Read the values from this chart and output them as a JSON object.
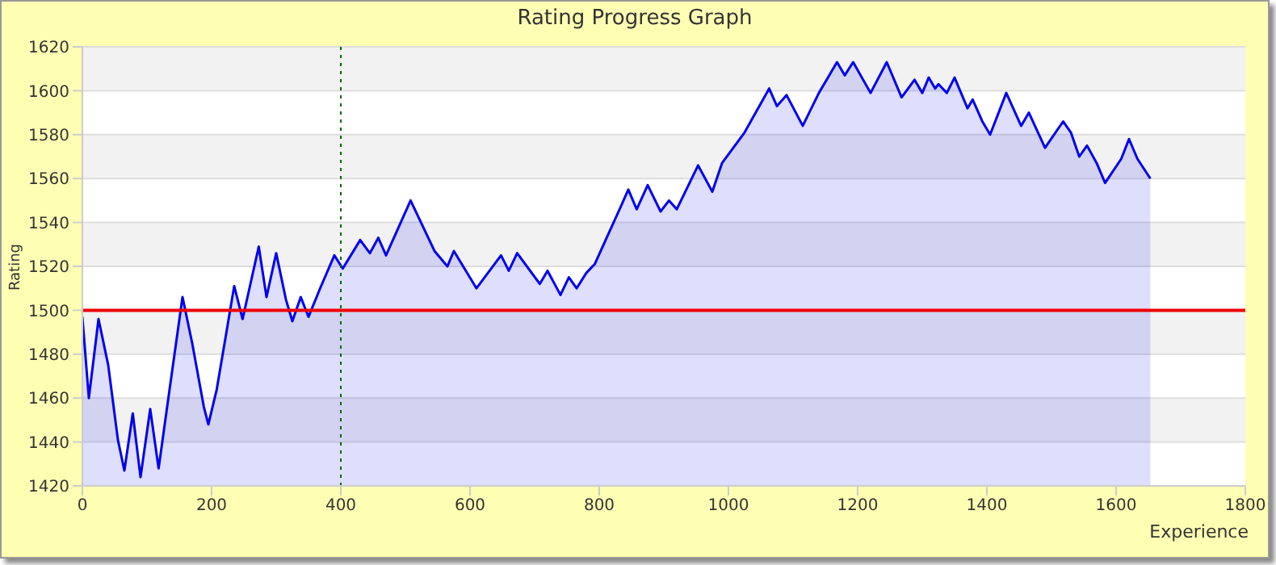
{
  "chart_data": {
    "type": "area",
    "title": "Rating Progress Graph",
    "xlabel": "Experience",
    "ylabel": "Rating",
    "x": [
      0,
      10,
      25,
      40,
      55,
      65,
      78,
      90,
      105,
      118,
      135,
      155,
      170,
      188,
      195,
      208,
      223,
      235,
      248,
      273,
      285,
      300,
      315,
      325,
      338,
      350,
      368,
      390,
      403,
      430,
      445,
      458,
      470,
      508,
      545,
      565,
      575,
      610,
      648,
      660,
      673,
      708,
      720,
      740,
      753,
      765,
      780,
      793,
      813,
      833,
      845,
      858,
      875,
      895,
      908,
      920,
      953,
      975,
      990,
      1025,
      1063,
      1075,
      1090,
      1115,
      1140,
      1168,
      1180,
      1193,
      1220,
      1245,
      1268,
      1288,
      1300,
      1310,
      1320,
      1325,
      1338,
      1350,
      1370,
      1378,
      1393,
      1405,
      1430,
      1453,
      1465,
      1490,
      1518,
      1530,
      1543,
      1555,
      1570,
      1583,
      1608,
      1620,
      1633,
      1653
    ],
    "series": [
      {
        "color": "#0000ee",
        "values": [
          1497,
          1460,
          1496,
          1475,
          1441,
          1427,
          1453,
          1424,
          1455,
          1428,
          1464,
          1506,
          1485,
          1456,
          1448,
          1464,
          1490,
          1511,
          1496,
          1529,
          1506,
          1526,
          1505,
          1495,
          1506,
          1497,
          1510,
          1525,
          1519,
          1532,
          1526,
          1533,
          1525,
          1550,
          1527,
          1520,
          1527,
          1510,
          1525,
          1518,
          1526,
          1512,
          1518,
          1507,
          1515,
          1510,
          1517,
          1521,
          1534,
          1547,
          1555,
          1546,
          1557,
          1545,
          1550,
          1546,
          1566,
          1554,
          1567,
          1581,
          1601,
          1593,
          1598,
          1584,
          1599,
          1613,
          1607,
          1613,
          1599,
          1613,
          1597,
          1605,
          1599,
          1606,
          1601,
          1603,
          1599,
          1606,
          1592,
          1596,
          1586,
          1580,
          1599,
          1584,
          1590,
          1574,
          1586,
          1581,
          1570,
          1575,
          1567,
          1558,
          1569,
          1578,
          1569,
          1560
        ]
      }
    ],
    "xlim": [
      0,
      1800
    ],
    "xticks": [
      0,
      200,
      400,
      600,
      800,
      1000,
      1200,
      1400,
      1600,
      1800
    ],
    "ylim": [
      1420,
      1620
    ],
    "yticks": [
      1420,
      1440,
      1460,
      1480,
      1500,
      1520,
      1540,
      1560,
      1580,
      1600,
      1620
    ],
    "grid": "y",
    "marker": "none",
    "ref_lines": [
      {
        "axis": "y",
        "value": 1500,
        "color": "#ee0000",
        "line_style": "solid"
      },
      {
        "axis": "x",
        "value": 400,
        "color": "#006600",
        "line_style": "dotted"
      }
    ]
  }
}
